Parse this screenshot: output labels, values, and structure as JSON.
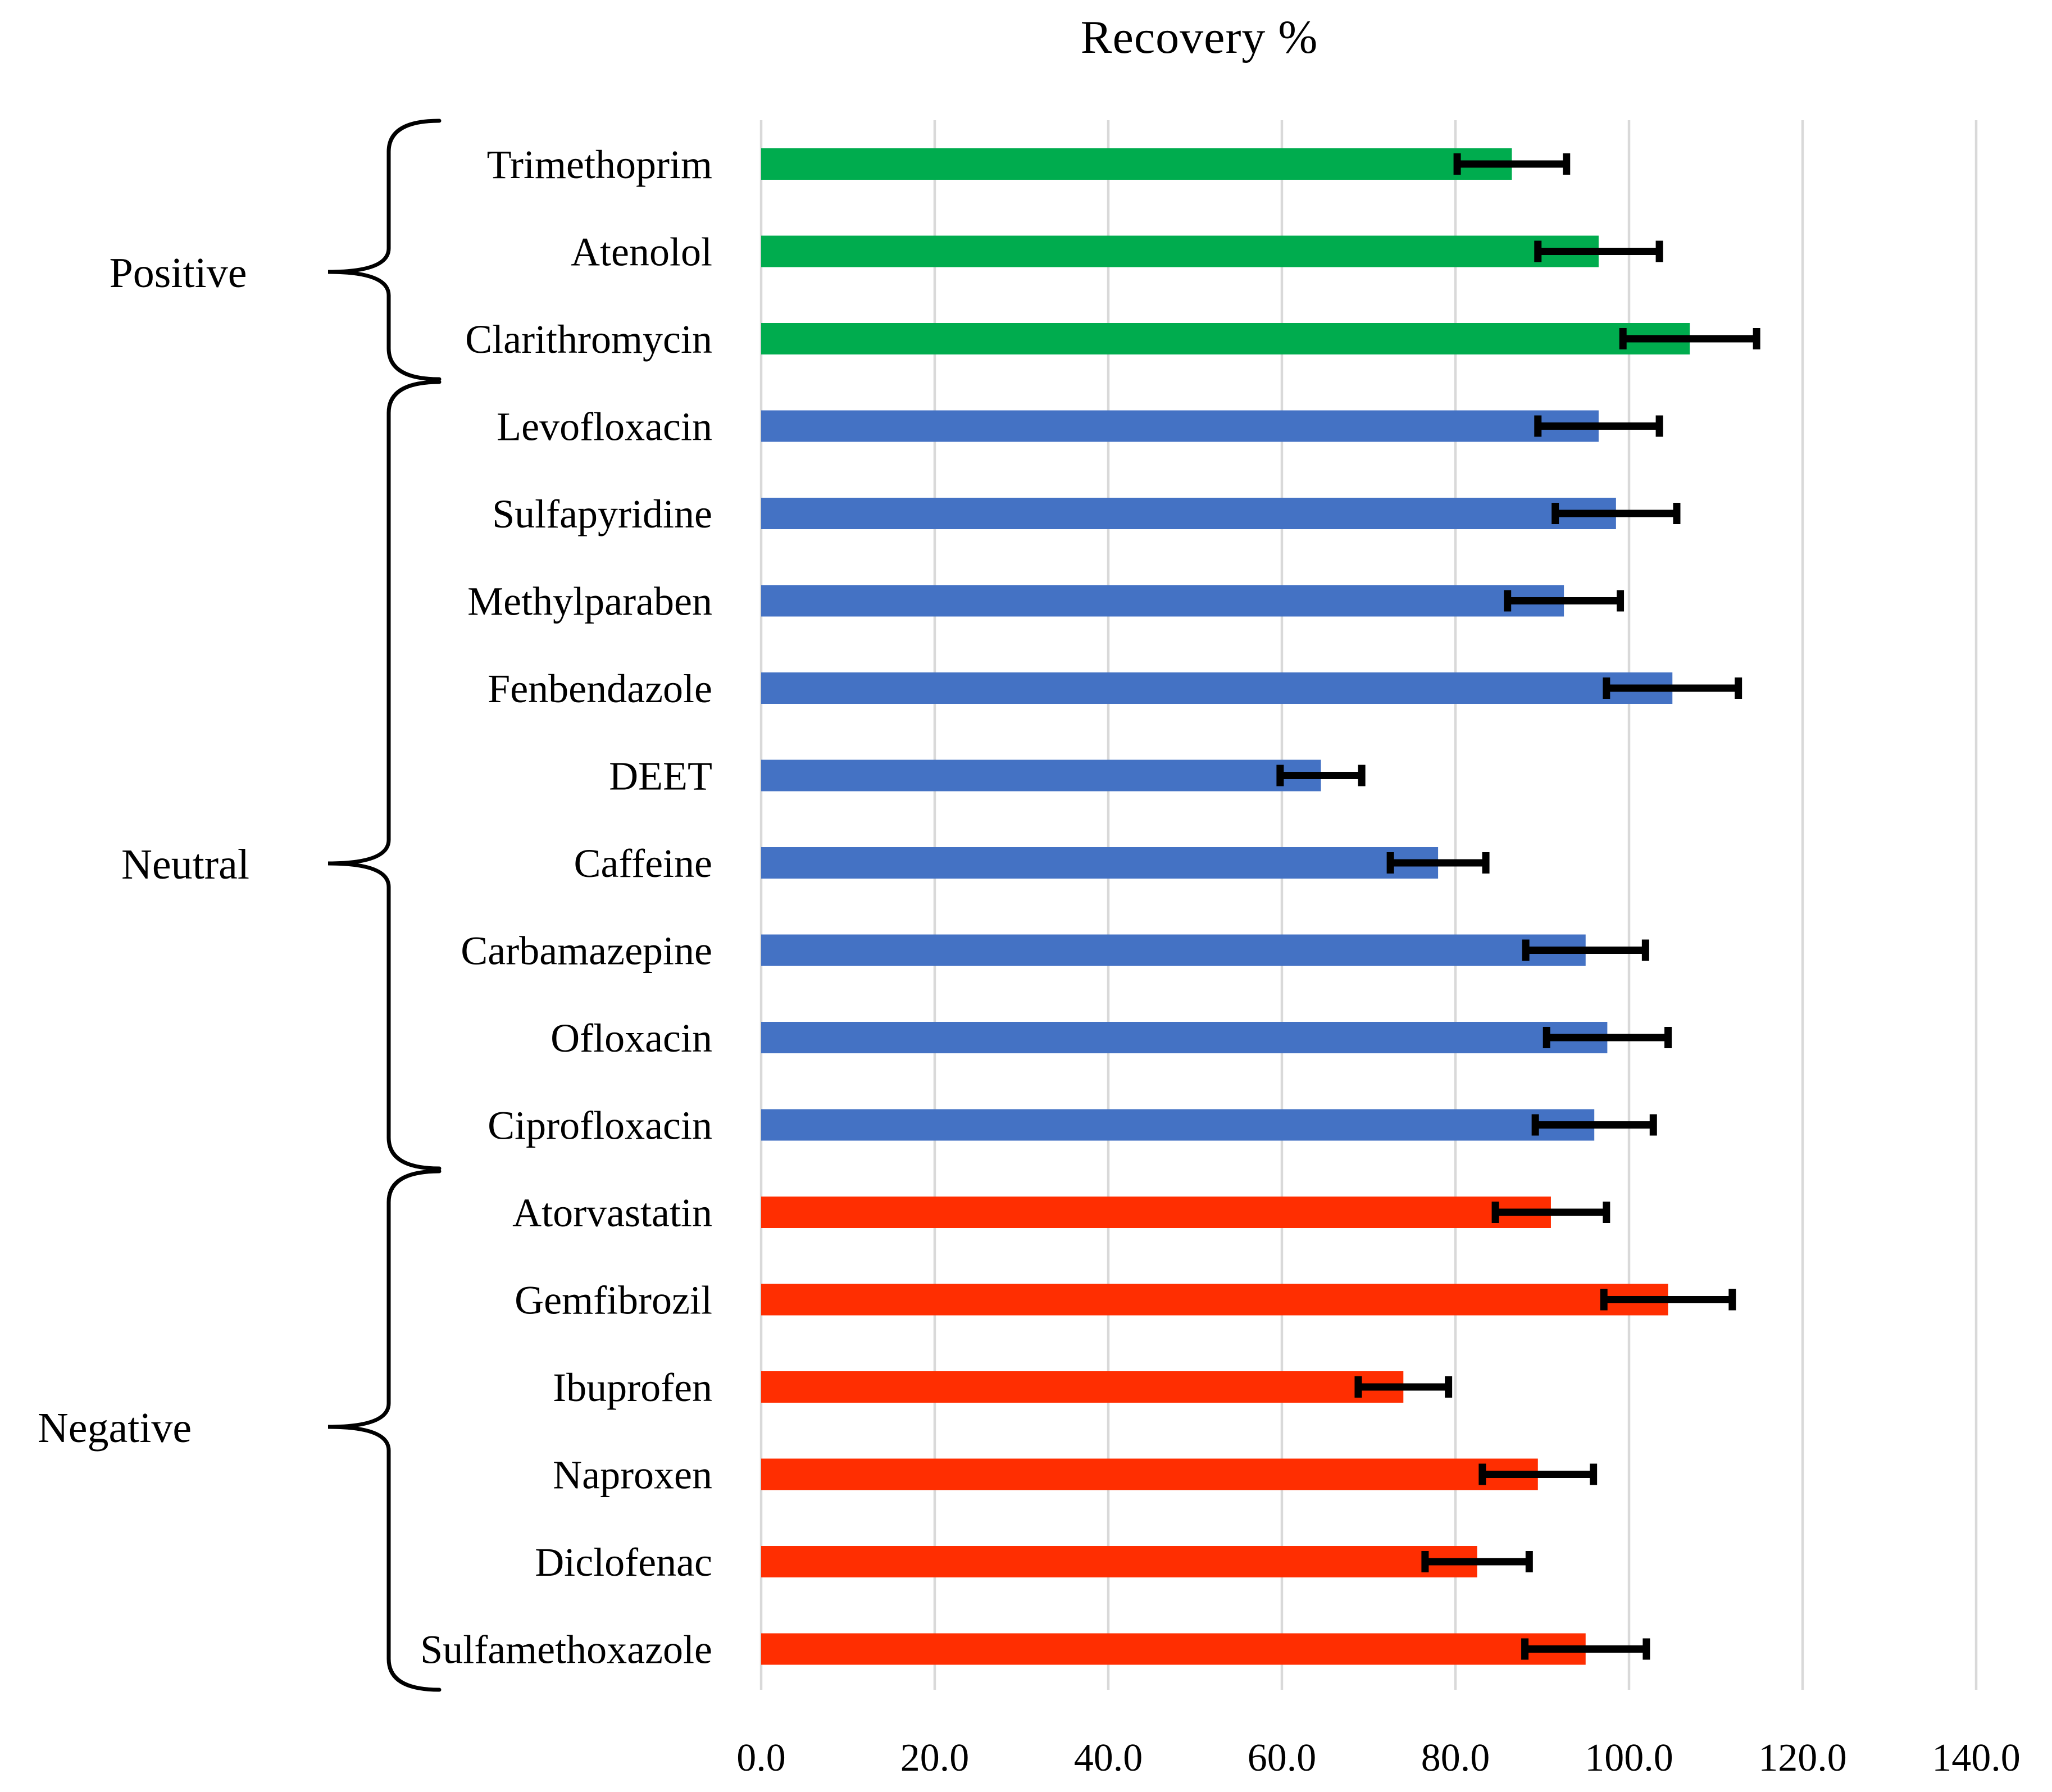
{
  "title": "Recovery %",
  "chart_data": {
    "type": "bar",
    "orientation": "horizontal",
    "title": "Recovery %",
    "xlabel": "",
    "ylabel": "",
    "xlim": [
      0,
      140
    ],
    "x_ticks": [
      0,
      20,
      40,
      60,
      80,
      100,
      120,
      140
    ],
    "x_tick_labels": [
      "0.0",
      "20.0",
      "40.0",
      "60.0",
      "80.0",
      "100.0",
      "120.0",
      "140.0"
    ],
    "grid": "vertical-only",
    "gridline_color": "#D9D9D9",
    "error_bar_color": "#000000",
    "background_color": "#FFFFFF",
    "legend": "none",
    "groups": [
      {
        "name": "Positive",
        "color": "#00AC4E",
        "rows": [
          0,
          2
        ]
      },
      {
        "name": "Neutral",
        "color": "#4472C4",
        "rows": [
          3,
          11
        ]
      },
      {
        "name": "Negative",
        "color": "#FF2E01",
        "rows": [
          12,
          17
        ]
      }
    ],
    "series": [
      {
        "label": "Trimethoprim",
        "group": "Positive",
        "value": 86.5,
        "error": 6.3
      },
      {
        "label": "Atenolol",
        "group": "Positive",
        "value": 96.5,
        "error": 7.0
      },
      {
        "label": "Clarithromycin",
        "group": "Positive",
        "value": 107.0,
        "error": 7.7
      },
      {
        "label": "Levofloxacin",
        "group": "Neutral",
        "value": 96.5,
        "error": 7.0
      },
      {
        "label": "Sulfapyridine",
        "group": "Neutral",
        "value": 98.5,
        "error": 7.0
      },
      {
        "label": "Methylparaben",
        "group": "Neutral",
        "value": 92.5,
        "error": 6.5
      },
      {
        "label": "Fenbendazole",
        "group": "Neutral",
        "value": 105.0,
        "error": 7.6
      },
      {
        "label": "DEET",
        "group": "Neutral",
        "value": 64.5,
        "error": 4.7
      },
      {
        "label": "Caffeine",
        "group": "Neutral",
        "value": 78.0,
        "error": 5.5
      },
      {
        "label": "Carbamazepine",
        "group": "Neutral",
        "value": 95.0,
        "error": 6.9
      },
      {
        "label": "Ofloxacin",
        "group": "Neutral",
        "value": 97.5,
        "error": 7.0
      },
      {
        "label": "Ciprofloxacin",
        "group": "Neutral",
        "value": 96.0,
        "error": 6.8
      },
      {
        "label": "Atorvastatin",
        "group": "Negative",
        "value": 91.0,
        "error": 6.4
      },
      {
        "label": "Gemfibrozil",
        "group": "Negative",
        "value": 104.5,
        "error": 7.4
      },
      {
        "label": "Ibuprofen",
        "group": "Negative",
        "value": 74.0,
        "error": 5.2
      },
      {
        "label": "Naproxen",
        "group": "Negative",
        "value": 89.5,
        "error": 6.4
      },
      {
        "label": "Diclofenac",
        "group": "Negative",
        "value": 82.5,
        "error": 6.0
      },
      {
        "label": "Sulfamethoxazole",
        "group": "Negative",
        "value": 95.0,
        "error": 7.0
      }
    ]
  }
}
